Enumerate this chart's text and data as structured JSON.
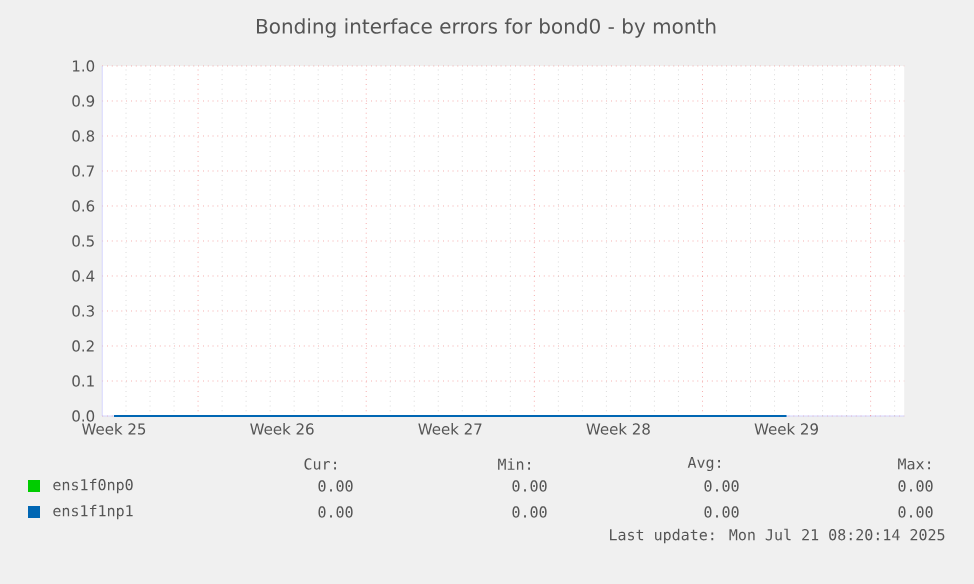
{
  "chart_data": {
    "type": "line",
    "title": "Bonding interface errors for bond0 - by month",
    "categories": [
      "Week 25",
      "Week 26",
      "Week 27",
      "Week 28",
      "Week 29"
    ],
    "ylim": [
      0,
      1
    ],
    "yticks": [
      {
        "value": 0,
        "label": "0.0"
      },
      {
        "value": 0.1,
        "label": "0.1"
      },
      {
        "value": 0.2,
        "label": "0.2"
      },
      {
        "value": 0.3,
        "label": "0.3"
      },
      {
        "value": 0.4,
        "label": "0.4"
      },
      {
        "value": 0.5,
        "label": "0.5"
      },
      {
        "value": 0.6,
        "label": "0.6"
      },
      {
        "value": 0.7,
        "label": "0.7"
      },
      {
        "value": 0.8,
        "label": "0.8"
      },
      {
        "value": 0.9,
        "label": "0.9"
      },
      {
        "value": 1,
        "label": "1.0"
      }
    ],
    "grid": true,
    "legend": "bottom",
    "series": [
      {
        "name": "ens1f0np0",
        "color": "#00cc00",
        "values": [
          null,
          null,
          null,
          null,
          null
        ]
      },
      {
        "name": "ens1f1np1",
        "color": "#0066b3",
        "values": [
          0,
          0,
          0,
          0,
          0
        ]
      }
    ],
    "annotations": [
      "Cur:",
      "Min:",
      "Avg:",
      "Max:",
      "0.00",
      "0.00",
      "0.00",
      "0.00",
      "0.00",
      "0.00",
      "0.00",
      "0.00",
      "Last update: Mon Jul 21 08:20:14 2025"
    ]
  }
}
